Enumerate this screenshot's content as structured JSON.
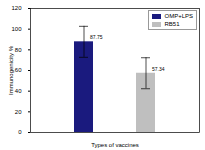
{
  "chart_data": {
    "type": "bar",
    "xlabel": "Types of vaccines",
    "ylabel": "Immunogenicity %",
    "series": [
      {
        "name": "OMP+LPS",
        "color": "#1a1a7e",
        "values": [
          87.75
        ],
        "errors": [
          15
        ]
      },
      {
        "name": "RB51",
        "color": "#bfbfbf",
        "values": [
          57.34
        ],
        "errors": [
          15
        ]
      }
    ],
    "ylim": [
      0,
      120
    ],
    "yticks": [
      0,
      20,
      40,
      60,
      80,
      100,
      120
    ],
    "data_labels": true,
    "legend": "upper right",
    "tick_labels": "y"
  }
}
